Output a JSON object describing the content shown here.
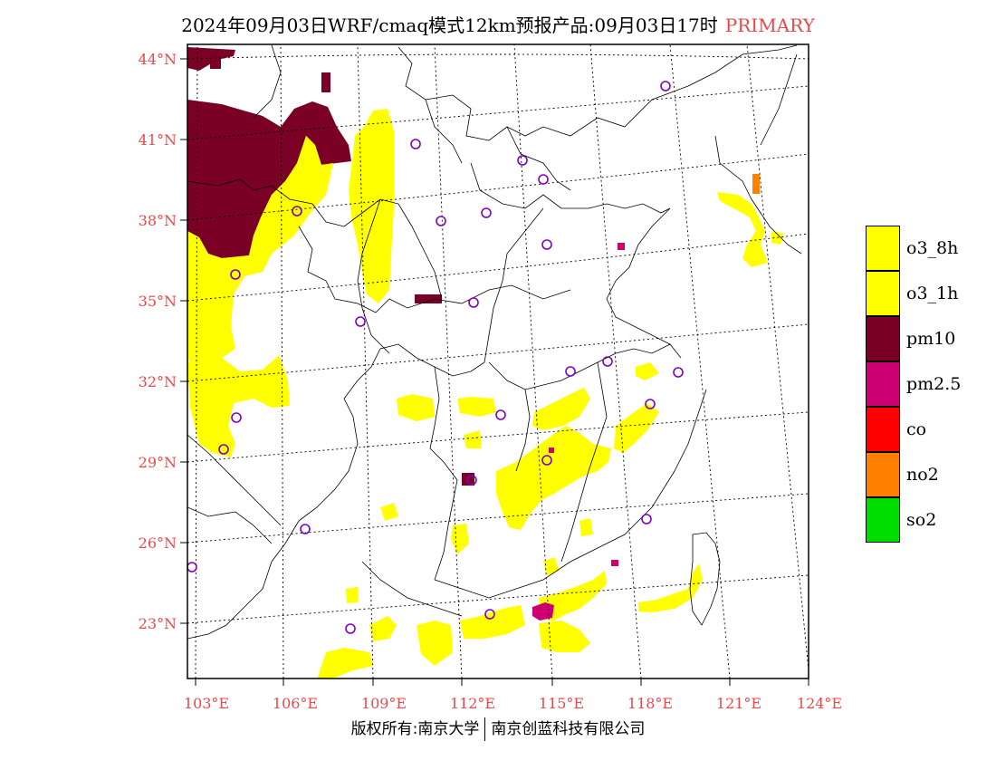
{
  "title": {
    "main": "2024年09月03日WRF/cmaq模式12km预报产品:09月03日17时",
    "tag": "PRIMARY"
  },
  "map": {
    "lat_ticks": [
      "44°N",
      "41°N",
      "38°N",
      "35°N",
      "32°N",
      "29°N",
      "26°N",
      "23°N"
    ],
    "lon_ticks": [
      "103°E",
      "106°E",
      "109°E",
      "112°E",
      "115°E",
      "118°E",
      "121°E",
      "124°E"
    ]
  },
  "legend": {
    "items": [
      {
        "label": "o3_8h",
        "color": "#ffff00"
      },
      {
        "label": "o3_1h",
        "color": "#ffff00"
      },
      {
        "label": "pm10",
        "color": "#7a0025"
      },
      {
        "label": "pm2.5",
        "color": "#cc0073"
      },
      {
        "label": "co",
        "color": "#ff0000"
      },
      {
        "label": "no2",
        "color": "#ff7f00"
      },
      {
        "label": "so2",
        "color": "#00dd00"
      }
    ]
  },
  "footer": {
    "left": "版权所有:南京大学",
    "right": "南京创蓝科技有限公司"
  },
  "colors": {
    "o3": "#ffff00",
    "pm10": "#7a0025",
    "pm25": "#cc0073",
    "no2": "#ff7f00",
    "label": "#e8494a",
    "station_marker": "#8000c0"
  }
}
